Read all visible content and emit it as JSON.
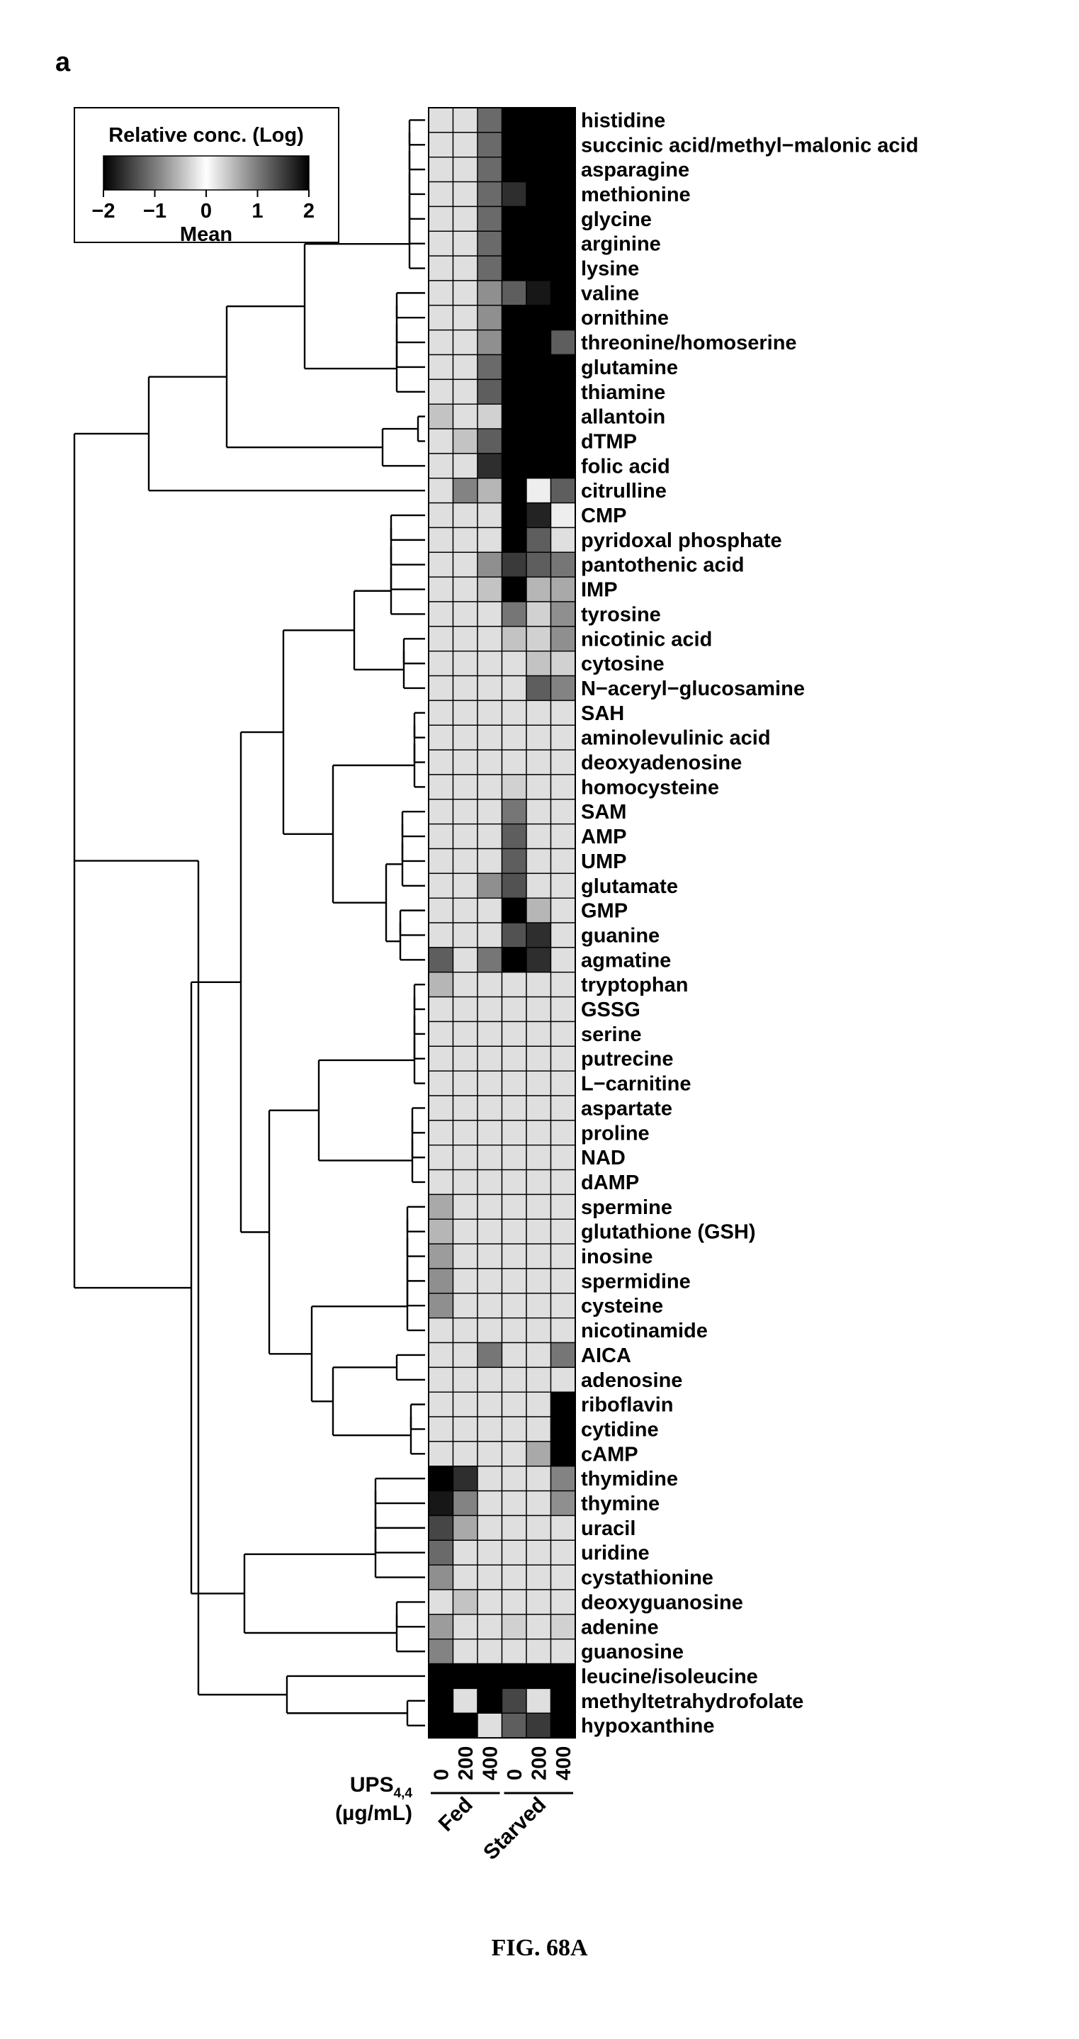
{
  "panel_label": "a",
  "caption": "FIG. 68A",
  "colors": {
    "low": "#000000",
    "mid": "#ffffff",
    "high": "#000000"
  },
  "chart_data": {
    "type": "heatmap",
    "legend": {
      "title": "Relative conc. (Log)",
      "scale": "log",
      "range": [
        -2,
        2
      ],
      "ticks": [
        "−2",
        "−1",
        "0",
        "1",
        "2"
      ],
      "center_label": "Mean"
    },
    "axis_title": [
      "UPS",
      "4,4",
      "(µg/mL)"
    ],
    "columns": [
      "0",
      "200",
      "400",
      "0",
      "200",
      "400"
    ],
    "groups": [
      {
        "label": "Fed",
        "columns": [
          0,
          1,
          2
        ]
      },
      {
        "label": "Starved",
        "columns": [
          3,
          4,
          5
        ]
      }
    ],
    "rows": [
      "histidine",
      "succinic acid/methyl−malonic acid",
      "asparagine",
      "methionine",
      "glycine",
      "arginine",
      "lysine",
      "valine",
      "ornithine",
      "threonine/homoserine",
      "glutamine",
      "thiamine",
      "allantoin",
      "dTMP",
      "folic acid",
      "citrulline",
      "CMP",
      "pyridoxal phosphate",
      "pantothenic acid",
      "IMP",
      "tyrosine",
      "nicotinic acid",
      "cytosine",
      "N−aceryl−glucosamine",
      "SAH",
      "aminolevulinic acid",
      "deoxyadenosine",
      "homocysteine",
      "SAM",
      "AMP",
      "UMP",
      "glutamate",
      "GMP",
      "guanine",
      "agmatine",
      "tryptophan",
      "GSSG",
      "serine",
      "putrecine",
      "L−carnitine",
      "aspartate",
      "proline",
      "NAD",
      "dAMP",
      "spermine",
      "glutathione (GSH)",
      "inosine",
      "spermidine",
      "cysteine",
      "nicotinamide",
      "AICA",
      "adenosine",
      "riboflavin",
      "cytidine",
      "cAMP",
      "thymidine",
      "thymine",
      "uracil",
      "uridine",
      "cystathionine",
      "deoxyguanosine",
      "adenine",
      "guanosine",
      "leucine/isoleucine",
      "methyltetrahydrofolate",
      "hypoxanthine"
    ],
    "values": [
      [
        0.2,
        0.2,
        1.1,
        -2,
        -2,
        -2
      ],
      [
        0.2,
        0.2,
        1.1,
        -2,
        -2,
        -2
      ],
      [
        0.2,
        0.2,
        1.1,
        -2,
        -2,
        -2
      ],
      [
        0.2,
        0.2,
        1.1,
        -1.6,
        -2,
        -2
      ],
      [
        0.2,
        0.2,
        1.1,
        -2,
        -2,
        -2
      ],
      [
        0.2,
        0.2,
        1.1,
        -2,
        -2,
        -2
      ],
      [
        0.2,
        0.2,
        1.1,
        -2,
        -2,
        -2
      ],
      [
        0.2,
        0.2,
        0.8,
        -1.2,
        -1.8,
        -2
      ],
      [
        0.2,
        0.2,
        0.8,
        -2,
        -2,
        -2
      ],
      [
        0.2,
        0.2,
        0.8,
        -2,
        -2,
        -1.2
      ],
      [
        0.2,
        0.2,
        1.1,
        -2,
        -2,
        -2
      ],
      [
        0.2,
        0.2,
        1.2,
        -2,
        -2,
        -2
      ],
      [
        0.4,
        0.2,
        0.3,
        -2,
        -2,
        -2
      ],
      [
        0.2,
        0.4,
        1.2,
        -2,
        -2,
        -2
      ],
      [
        0.2,
        0.2,
        1.6,
        -2,
        -2,
        -2
      ],
      [
        0.2,
        0.9,
        0.5,
        -2,
        0.1,
        -1.2
      ],
      [
        0.2,
        0.2,
        0.2,
        -2,
        -1.7,
        0.1
      ],
      [
        0.2,
        0.2,
        0.2,
        -2,
        -1.2,
        0.2
      ],
      [
        0.2,
        0.2,
        0.8,
        -1.5,
        -1.2,
        -1
      ],
      [
        0.2,
        0.2,
        0.4,
        -2,
        -0.5,
        -0.6
      ],
      [
        0.2,
        0.2,
        0.2,
        -1.0,
        -0.3,
        -0.8
      ],
      [
        0.2,
        0.2,
        0.2,
        -0.4,
        -0.3,
        -0.8
      ],
      [
        0.2,
        0.2,
        0.2,
        0.2,
        -0.4,
        -0.3
      ],
      [
        0.2,
        0.2,
        0.2,
        0.2,
        -1.2,
        -0.9
      ],
      [
        0.2,
        0.2,
        0.2,
        0.2,
        0.2,
        0.2
      ],
      [
        0.2,
        0.2,
        0.2,
        0.2,
        0.2,
        0.2
      ],
      [
        0.2,
        0.2,
        0.2,
        0.2,
        0.2,
        0.2
      ],
      [
        0.2,
        0.2,
        0.2,
        -0.3,
        0.2,
        0.2
      ],
      [
        0.2,
        0.2,
        0.2,
        -1.0,
        0.2,
        0.2
      ],
      [
        0.2,
        0.2,
        0.2,
        -1.2,
        0.2,
        0.2
      ],
      [
        0.2,
        0.2,
        0.2,
        -1.2,
        0.2,
        0.2
      ],
      [
        0.2,
        0.2,
        0.8,
        -1.3,
        0.2,
        0.2
      ],
      [
        0.2,
        0.2,
        0.2,
        -2,
        -0.5,
        0.2
      ],
      [
        0.2,
        0.2,
        0.2,
        -1.3,
        -1.6,
        0.2
      ],
      [
        1.2,
        0.2,
        1.0,
        -2,
        -1.6,
        0.2
      ],
      [
        0.5,
        0.2,
        0.2,
        0.2,
        0.2,
        0.2
      ],
      [
        0.2,
        0.2,
        0.2,
        0.2,
        0.2,
        0.2
      ],
      [
        0.2,
        0.2,
        0.2,
        0.2,
        0.2,
        0.2
      ],
      [
        0.2,
        0.2,
        0.2,
        0.2,
        0.2,
        0.2
      ],
      [
        0.2,
        0.2,
        0.2,
        0.2,
        0.2,
        0.2
      ],
      [
        0.2,
        0.2,
        0.2,
        0.2,
        0.2,
        0.2
      ],
      [
        0.2,
        0.2,
        0.2,
        0.2,
        0.2,
        0.2
      ],
      [
        0.2,
        0.2,
        0.2,
        0.2,
        0.2,
        0.2
      ],
      [
        0.2,
        0.2,
        0.2,
        0.2,
        0.2,
        0.2
      ],
      [
        0.6,
        0.2,
        0.2,
        0.2,
        0.2,
        0.2
      ],
      [
        0.5,
        0.2,
        0.2,
        0.2,
        0.2,
        0.2
      ],
      [
        0.7,
        0.2,
        0.2,
        0.2,
        0.2,
        0.2
      ],
      [
        0.8,
        0.2,
        0.2,
        0.2,
        0.2,
        0.2
      ],
      [
        0.8,
        0.2,
        0.2,
        0.2,
        0.2,
        0.2
      ],
      [
        0.2,
        0.2,
        0.2,
        0.2,
        0.2,
        0.2
      ],
      [
        0.2,
        0.2,
        1.0,
        0.2,
        0.2,
        -1.0
      ],
      [
        0.2,
        0.2,
        0.2,
        0.2,
        0.2,
        0.2
      ],
      [
        0.2,
        0.2,
        0.2,
        0.2,
        0.2,
        -2
      ],
      [
        0.2,
        0.2,
        0.2,
        0.2,
        0.2,
        -2
      ],
      [
        0.2,
        0.2,
        0.2,
        0.2,
        -0.6,
        -2
      ],
      [
        2,
        1.6,
        0.2,
        0.2,
        0.2,
        -0.9
      ],
      [
        1.8,
        0.9,
        0.2,
        0.2,
        0.2,
        -0.8
      ],
      [
        1.4,
        0.6,
        0.2,
        0.2,
        0.2,
        0.2
      ],
      [
        1.1,
        0.2,
        0.2,
        0.2,
        0.2,
        0.2
      ],
      [
        0.8,
        0.2,
        0.2,
        0.2,
        0.2,
        0.2
      ],
      [
        0.2,
        0.4,
        0.2,
        0.2,
        0.2,
        0.2
      ],
      [
        0.7,
        0.2,
        0.2,
        -0.3,
        0.2,
        -0.3
      ],
      [
        0.9,
        0.2,
        0.2,
        0.2,
        0.2,
        0.2
      ],
      [
        2,
        2,
        2,
        -2,
        -2,
        -2
      ],
      [
        2,
        0.2,
        2,
        -1.4,
        0.2,
        -2
      ],
      [
        2,
        2,
        0.2,
        -1.2,
        -1.5,
        -2
      ]
    ]
  }
}
